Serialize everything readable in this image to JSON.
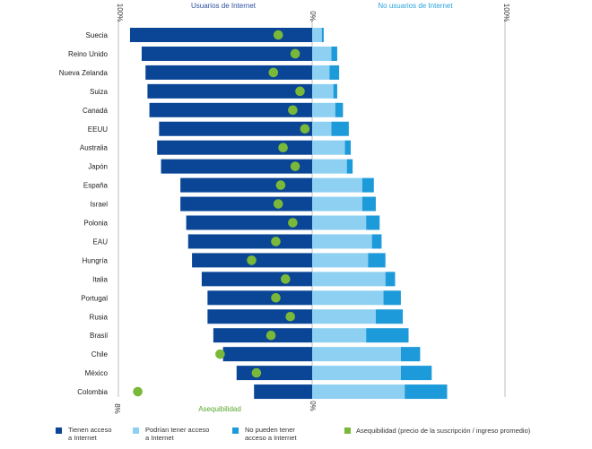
{
  "header": {
    "left_title": "Usuarios de Internet",
    "right_title": "No usuarios de Internet",
    "left_pct_label": "100%",
    "center_pct_label": "0%",
    "right_pct_label": "100%"
  },
  "footer": {
    "left_pct_label": "8%",
    "center_pct_label": "0%",
    "affordability_axis_label": "Asequibilidad"
  },
  "legend": {
    "have_access": "Tienen acceso a Internet",
    "could_access": "Podrían tener acceso a Internet",
    "cannot_access": "No pueden tener acceso a Internet",
    "affordability": "Asequibilidad (precio de la suscripción / ingreso promedio)"
  },
  "colors": {
    "have_access": "#0a4596",
    "could_access": "#8ed0f1",
    "cannot_access": "#1d9ad9",
    "affordability": "#7ab83a",
    "header_left": "#2c4f9e",
    "header_right": "#29a3dc",
    "affordability_label": "#5aa62e",
    "axis_line": "#bdbdbd"
  },
  "chart_data": {
    "type": "bar",
    "orientation": "horizontal-diverging",
    "categories": [
      "Suecia",
      "Reino Unido",
      "Nueva Zelanda",
      "Suiza",
      "Canadá",
      "EEUU",
      "Australia",
      "Japón",
      "España",
      "Israel",
      "Polonia",
      "EAU",
      "Hungría",
      "Italia",
      "Portugal",
      "Rusia",
      "Brasil",
      "Chile",
      "México",
      "Colombia"
    ],
    "left_axis": {
      "label_top_left": "100%",
      "label_top_center": "0%",
      "range": [
        0,
        100
      ]
    },
    "right_axis": {
      "label_top_right": "100%",
      "range": [
        0,
        100
      ]
    },
    "affordability_axis": {
      "label": "Asequibilidad",
      "range": [
        0,
        8
      ],
      "tick_labels": [
        "8%",
        "0%"
      ]
    },
    "series": [
      {
        "name": "Tienen acceso a Internet",
        "side": "left",
        "values": [
          94,
          88,
          86,
          85,
          84,
          79,
          80,
          78,
          68,
          68,
          65,
          64,
          62,
          57,
          54,
          54,
          51,
          46,
          39,
          30
        ]
      },
      {
        "name": "Podrían tener acceso a Internet",
        "side": "right",
        "values": [
          5,
          10,
          9,
          11,
          12,
          10,
          17,
          18,
          26,
          26,
          28,
          31,
          29,
          38,
          37,
          33,
          28,
          46,
          46,
          48
        ]
      },
      {
        "name": "No pueden tener acceso a Internet",
        "side": "right",
        "values": [
          1,
          3,
          5,
          2,
          4,
          9,
          3,
          3,
          6,
          7,
          7,
          5,
          9,
          5,
          9,
          14,
          22,
          10,
          16,
          22
        ]
      },
      {
        "name": "Asequibilidad (precio de la suscripción / ingreso promedio)",
        "side": "left",
        "values": [
          1.4,
          0.7,
          1.6,
          0.5,
          0.8,
          0.3,
          1.2,
          0.7,
          1.3,
          1.4,
          0.8,
          1.5,
          2.5,
          1.1,
          1.5,
          0.9,
          1.7,
          3.8,
          2.3,
          7.2
        ]
      }
    ]
  }
}
